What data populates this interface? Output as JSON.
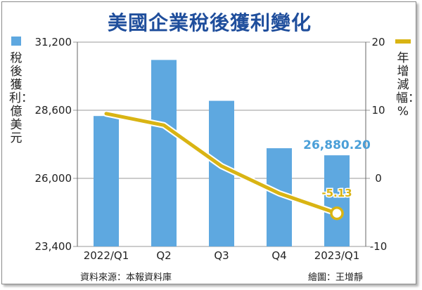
{
  "chart_data": {
    "type": "bar+line",
    "title": "美國企業稅後獲利變化",
    "categories": [
      "2022/Q1",
      "Q2",
      "Q3",
      "Q4",
      "2023/Q1"
    ],
    "series": [
      {
        "name": "稅後獲利：億美元",
        "type": "bar",
        "axis": "left",
        "values": [
          28380,
          30520,
          28960,
          27150,
          26880.2
        ]
      },
      {
        "name": "年增減幅：%",
        "type": "line",
        "axis": "right",
        "values": [
          9.5,
          7.8,
          1.8,
          -2.2,
          -5.13
        ]
      }
    ],
    "left_axis": {
      "label": "稅後獲利：億美元",
      "ylim": [
        23400,
        31200
      ],
      "ticks": [
        "31,200",
        "28,600",
        "26,000",
        "23,400"
      ]
    },
    "right_axis": {
      "label": "年增減幅：%",
      "ylim": [
        -10,
        20
      ],
      "ticks": [
        "20",
        "10",
        "0",
        "-10"
      ]
    },
    "annotations": {
      "last_bar": "26,880.20",
      "last_point": "-5.13"
    },
    "colors": {
      "bar": "#5ea8e0",
      "line": "#d9b413",
      "title": "#1f4e9c",
      "bar_label": "#4a9fd8"
    }
  },
  "footer": {
    "source": "資料來源：本報資料庫",
    "credit": "繪圖：王增靜"
  }
}
